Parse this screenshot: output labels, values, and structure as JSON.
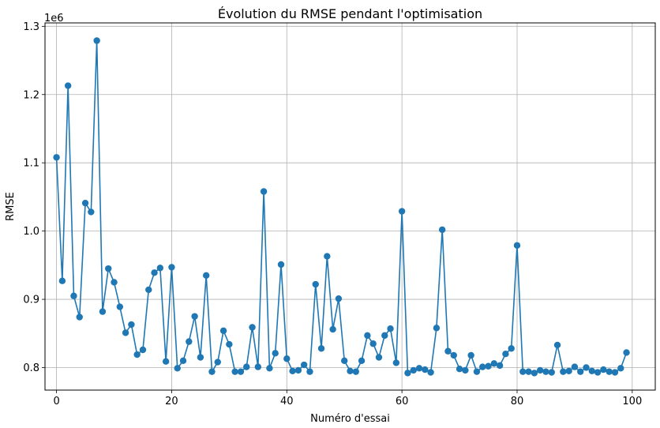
{
  "chart_data": {
    "type": "line",
    "title": "Évolution du RMSE pendant l'optimisation",
    "xlabel": "Numéro d'essai",
    "ylabel": "RMSE",
    "y_multiplier_label": "1e6",
    "xlim": [
      -2,
      104
    ],
    "ylim": [
      0.767,
      1.305
    ],
    "xticks": [
      0,
      20,
      40,
      60,
      80,
      100
    ],
    "xtick_labels": [
      "0",
      "20",
      "40",
      "60",
      "80",
      "100"
    ],
    "yticks": [
      0.8,
      0.9,
      1.0,
      1.1,
      1.2,
      1.3
    ],
    "ytick_labels": [
      "0.8",
      "0.9",
      "1.0",
      "1.1",
      "1.2",
      "1.3"
    ],
    "grid": true,
    "marker": "circle",
    "color": "#1f77b4",
    "series": [
      {
        "x": [
          0,
          1,
          2,
          3,
          4,
          5,
          6,
          7,
          8,
          9,
          10,
          11,
          12,
          13,
          14,
          15,
          16,
          17,
          18,
          19,
          20,
          21,
          22,
          23,
          24,
          25,
          26,
          27,
          28,
          29,
          30,
          31,
          32,
          33,
          34,
          35,
          36,
          37,
          38,
          39,
          40,
          41,
          42,
          43,
          44,
          45,
          46,
          47,
          48,
          49,
          50,
          51,
          52,
          53,
          54,
          55,
          56,
          57,
          58,
          59,
          60,
          61,
          62,
          63,
          64,
          65,
          66,
          67,
          68,
          69,
          70,
          71,
          72,
          73,
          74,
          75,
          76,
          77,
          78,
          79,
          80,
          81,
          82,
          83,
          84,
          85,
          86,
          87,
          88,
          89,
          90,
          91,
          92,
          93,
          94,
          95,
          96,
          97,
          98,
          99
        ],
        "values": [
          1.108,
          0.927,
          1.213,
          0.905,
          0.874,
          1.041,
          1.028,
          1.279,
          0.882,
          0.945,
          0.925,
          0.889,
          0.851,
          0.863,
          0.819,
          0.826,
          0.914,
          0.939,
          0.946,
          0.809,
          0.947,
          0.799,
          0.81,
          0.838,
          0.875,
          0.815,
          0.935,
          0.794,
          0.808,
          0.854,
          0.834,
          0.794,
          0.794,
          0.801,
          0.859,
          0.801,
          1.058,
          0.799,
          0.821,
          0.951,
          0.813,
          0.795,
          0.796,
          0.804,
          0.794,
          0.922,
          0.828,
          0.963,
          0.856,
          0.901,
          0.81,
          0.795,
          0.794,
          0.81,
          0.847,
          0.835,
          0.815,
          0.847,
          0.857,
          0.807,
          1.029,
          0.792,
          0.796,
          0.799,
          0.797,
          0.793,
          0.858,
          1.002,
          0.824,
          0.818,
          0.798,
          0.796,
          0.818,
          0.794,
          0.801,
          0.802,
          0.806,
          0.803,
          0.82,
          0.828,
          0.979,
          0.794,
          0.794,
          0.792,
          0.796,
          0.794,
          0.793,
          0.833,
          0.794,
          0.795,
          0.801,
          0.794,
          0.8,
          0.795,
          0.793,
          0.797,
          0.794,
          0.793,
          0.799,
          0.822
        ]
      }
    ]
  }
}
